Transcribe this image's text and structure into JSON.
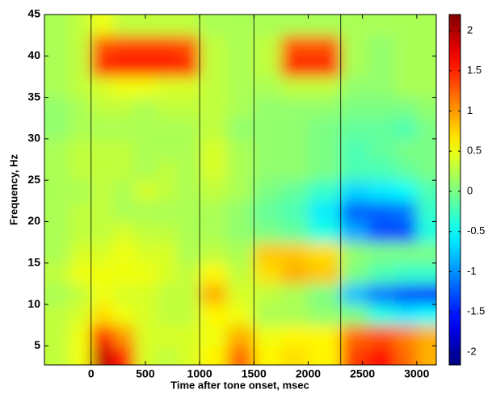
{
  "chart_data": {
    "type": "heatmap",
    "xlabel": "Time after tone onset, msec",
    "ylabel": "Frequency, Hz",
    "xlim": [
      -430,
      3180
    ],
    "ylim": [
      2.7,
      45
    ],
    "xticks": [
      0,
      500,
      1000,
      1500,
      2000,
      2500,
      3000
    ],
    "yticks": [
      5,
      10,
      15,
      20,
      25,
      30,
      35,
      40,
      45
    ],
    "xbins": [
      -430,
      -200,
      0,
      200,
      400,
      600,
      800,
      1000,
      1250,
      1500,
      1750,
      2000,
      2300,
      2550,
      2800,
      3000,
      3180
    ],
    "ybins": [
      2.7,
      5,
      7.5,
      10,
      12.5,
      15,
      17.5,
      20,
      22.5,
      25,
      27.5,
      30,
      32.5,
      35,
      37.5,
      40,
      42.5,
      45
    ],
    "vlines": [
      0,
      1000,
      1500,
      2300
    ],
    "colormap": "jet",
    "clim": [
      -2.16,
      2.2
    ],
    "cticks": [
      -2,
      -1.5,
      -1,
      -0.5,
      0,
      0.5,
      1,
      1.5,
      2
    ],
    "z": [
      [
        0.3,
        0.5,
        1.9,
        1.5,
        0.4,
        0.3,
        0.4,
        0.6,
        1.2,
        0.6,
        0.7,
        0.6,
        1.4,
        1.6,
        1.2,
        0.9
      ],
      [
        0.3,
        0.5,
        1.6,
        1.0,
        0.4,
        0.4,
        0.4,
        0.5,
        0.9,
        0.5,
        0.6,
        0.6,
        1.2,
        1.3,
        1.1,
        0.9
      ],
      [
        0.3,
        0.4,
        0.7,
        0.5,
        0.4,
        0.3,
        0.3,
        0.6,
        0.5,
        0.2,
        0.2,
        0.1,
        0.0,
        -0.4,
        -0.6,
        -0.5
      ],
      [
        0.2,
        0.3,
        0.5,
        0.4,
        0.4,
        0.3,
        0.3,
        0.9,
        0.4,
        0.3,
        0.2,
        0.0,
        -0.8,
        -1.1,
        -1.3,
        -1.4
      ],
      [
        0.3,
        0.5,
        0.5,
        0.5,
        0.5,
        0.4,
        0.3,
        0.6,
        0.3,
        0.7,
        0.9,
        0.8,
        0.0,
        -0.2,
        -0.3,
        -0.3
      ],
      [
        0.2,
        0.4,
        0.4,
        0.5,
        0.4,
        0.4,
        0.2,
        0.3,
        0.2,
        0.8,
        0.8,
        0.7,
        0.1,
        0.0,
        0.0,
        0.0
      ],
      [
        0.2,
        0.3,
        0.3,
        0.4,
        0.3,
        0.3,
        0.2,
        0.2,
        0.1,
        0.0,
        -0.1,
        -0.4,
        -0.9,
        -1.3,
        -1.3,
        -0.4
      ],
      [
        0.2,
        0.3,
        0.3,
        0.2,
        0.2,
        0.2,
        0.2,
        0.2,
        0.1,
        -0.1,
        -0.2,
        -0.6,
        -1.2,
        -1.2,
        -1.1,
        -0.3
      ],
      [
        0.2,
        0.2,
        0.3,
        0.2,
        0.4,
        0.3,
        0.2,
        0.3,
        0.2,
        0.0,
        -0.1,
        -0.3,
        -0.7,
        -0.6,
        -0.5,
        -0.2
      ],
      [
        0.2,
        0.3,
        0.3,
        0.3,
        0.2,
        0.3,
        0.2,
        0.4,
        0.2,
        0.1,
        0.1,
        0.0,
        -0.2,
        -0.2,
        -0.1,
        0.0
      ],
      [
        0.2,
        0.3,
        0.3,
        0.3,
        0.2,
        0.2,
        0.2,
        0.4,
        0.2,
        0.1,
        0.1,
        0.0,
        -0.2,
        -0.1,
        0.0,
        0.0
      ],
      [
        0.1,
        0.2,
        0.2,
        0.2,
        0.2,
        0.2,
        0.2,
        0.3,
        0.1,
        0.1,
        0.1,
        0.0,
        -0.1,
        -0.1,
        -0.2,
        0.0
      ],
      [
        0.1,
        0.2,
        0.3,
        0.3,
        0.2,
        0.3,
        0.3,
        0.3,
        0.2,
        0.1,
        0.1,
        0.1,
        0.0,
        0.0,
        0.0,
        0.1
      ],
      [
        0.2,
        0.3,
        0.4,
        0.5,
        0.5,
        0.4,
        0.4,
        0.3,
        0.2,
        0.2,
        0.3,
        0.3,
        0.1,
        0.1,
        0.2,
        0.2
      ],
      [
        0.2,
        0.3,
        1.5,
        1.6,
        1.6,
        1.6,
        1.5,
        0.3,
        0.2,
        0.3,
        1.5,
        1.5,
        0.2,
        0.1,
        0.2,
        0.2
      ],
      [
        0.2,
        0.3,
        1.3,
        1.4,
        1.4,
        1.4,
        1.3,
        0.3,
        0.2,
        0.3,
        1.3,
        1.3,
        0.2,
        0.1,
        0.2,
        0.2
      ],
      [
        0.2,
        0.3,
        0.5,
        0.3,
        0.3,
        0.3,
        0.3,
        0.2,
        0.2,
        0.2,
        0.2,
        0.2,
        0.2,
        0.2,
        0.2,
        0.2
      ]
    ]
  }
}
